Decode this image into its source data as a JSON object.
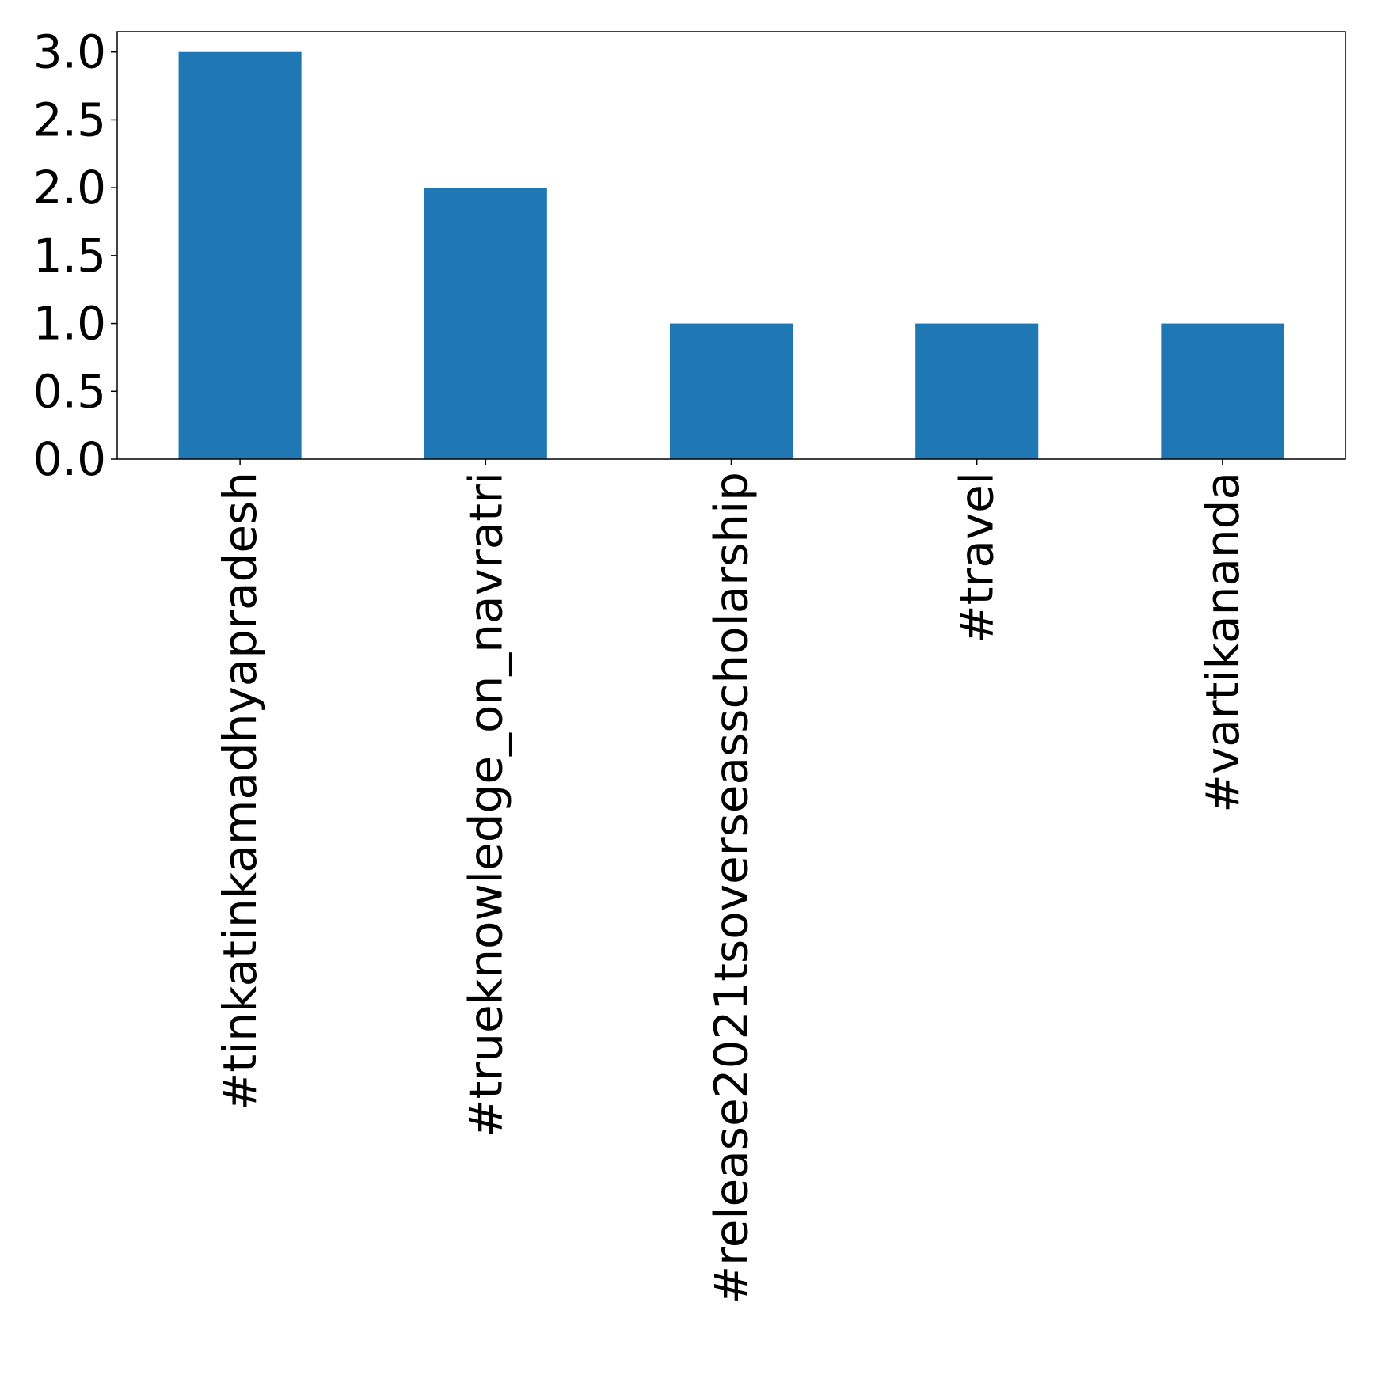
{
  "chart_data": {
    "type": "bar",
    "categories": [
      "#tinkatinkamadhyapradesh",
      "#trueknowledge_on_navratri",
      "#release2021tsoverseasscholarship",
      "#travel",
      "#vartikananda"
    ],
    "values": [
      3,
      2,
      1,
      1,
      1
    ],
    "title": "",
    "xlabel": "",
    "ylabel": "",
    "ylim": [
      0,
      3.15
    ],
    "yticks": [
      0.0,
      0.5,
      1.0,
      1.5,
      2.0,
      2.5,
      3.0
    ],
    "ytick_labels": [
      "0.0",
      "0.5",
      "1.0",
      "1.5",
      "2.0",
      "2.5",
      "3.0"
    ],
    "bar_color": "#1f77b4",
    "grid": false,
    "legend": "none"
  }
}
